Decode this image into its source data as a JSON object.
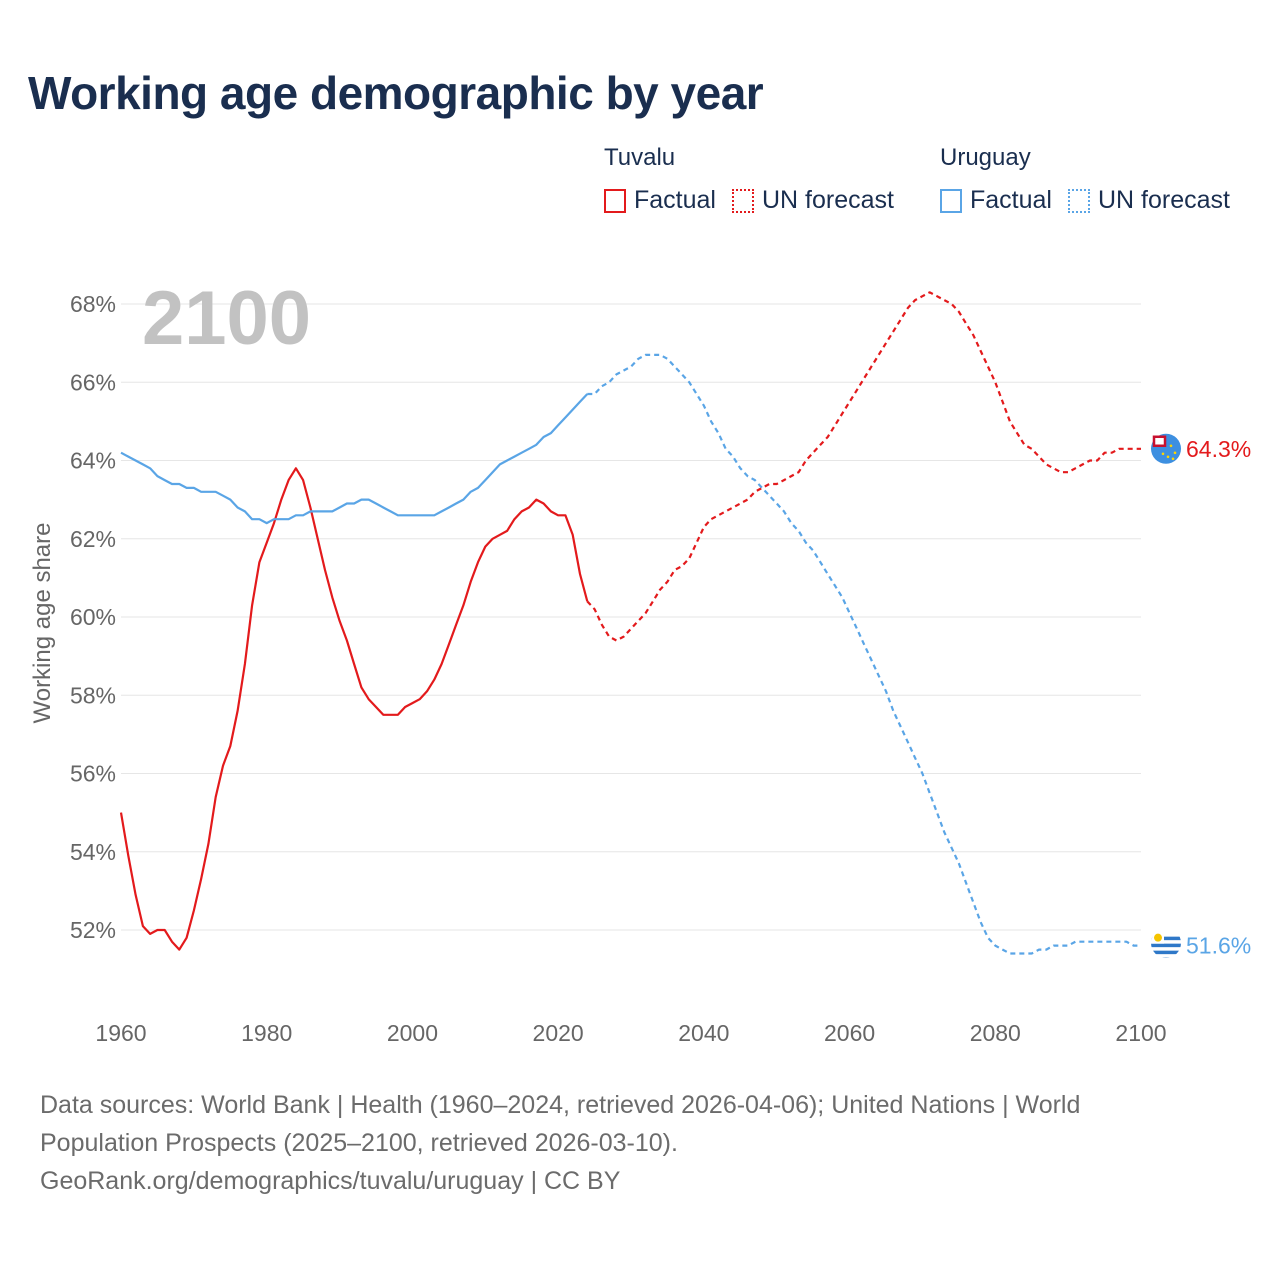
{
  "title": "Working age demographic by year",
  "legend": {
    "groups": [
      {
        "name": "Tuvalu",
        "color": "#e31a1c",
        "factual_label": "Factual",
        "forecast_label": "UN forecast"
      },
      {
        "name": "Uruguay",
        "color": "#5aa5e6",
        "factual_label": "Factual",
        "forecast_label": "UN forecast"
      }
    ]
  },
  "footer": {
    "line1": "Data sources: World Bank | Health (1960–2024, retrieved 2026-04-06); United Nations | World",
    "line2": "Population Prospects (2025–2100, retrieved 2026-03-10).",
    "line3": "GeoRank.org/demographics/tuvalu/uruguay | CC BY"
  },
  "chart_data": {
    "type": "line",
    "title": "Working age demographic by year",
    "year_watermark": "2100",
    "xlabel": "",
    "ylabel": "Working age share",
    "xlim": [
      1960,
      2100
    ],
    "ylim": [
      50.5,
      69
    ],
    "x_ticks": [
      1960,
      1980,
      2000,
      2020,
      2040,
      2060,
      2080,
      2100
    ],
    "y_ticks": [
      52,
      54,
      56,
      58,
      60,
      62,
      64,
      66,
      68
    ],
    "y_tick_suffix": "%",
    "grid": true,
    "factual_end_year": 2024,
    "series": [
      {
        "name": "Tuvalu",
        "color": "#e31a1c",
        "end_label": "64.3%",
        "flag_icon": "tuvalu-flag-icon",
        "points": [
          [
            1960,
            55.0
          ],
          [
            1961,
            53.9
          ],
          [
            1962,
            52.9
          ],
          [
            1963,
            52.1
          ],
          [
            1964,
            51.9
          ],
          [
            1965,
            52.0
          ],
          [
            1966,
            52.0
          ],
          [
            1967,
            51.7
          ],
          [
            1968,
            51.5
          ],
          [
            1969,
            51.8
          ],
          [
            1970,
            52.5
          ],
          [
            1971,
            53.3
          ],
          [
            1972,
            54.2
          ],
          [
            1973,
            55.4
          ],
          [
            1974,
            56.2
          ],
          [
            1975,
            56.7
          ],
          [
            1976,
            57.6
          ],
          [
            1977,
            58.8
          ],
          [
            1978,
            60.3
          ],
          [
            1979,
            61.4
          ],
          [
            1980,
            61.9
          ],
          [
            1981,
            62.4
          ],
          [
            1982,
            63.0
          ],
          [
            1983,
            63.5
          ],
          [
            1984,
            63.8
          ],
          [
            1985,
            63.5
          ],
          [
            1986,
            62.8
          ],
          [
            1987,
            62.0
          ],
          [
            1988,
            61.2
          ],
          [
            1989,
            60.5
          ],
          [
            1990,
            59.9
          ],
          [
            1991,
            59.4
          ],
          [
            1992,
            58.8
          ],
          [
            1993,
            58.2
          ],
          [
            1994,
            57.9
          ],
          [
            1995,
            57.7
          ],
          [
            1996,
            57.5
          ],
          [
            1997,
            57.5
          ],
          [
            1998,
            57.5
          ],
          [
            1999,
            57.7
          ],
          [
            2000,
            57.8
          ],
          [
            2001,
            57.9
          ],
          [
            2002,
            58.1
          ],
          [
            2003,
            58.4
          ],
          [
            2004,
            58.8
          ],
          [
            2005,
            59.3
          ],
          [
            2006,
            59.8
          ],
          [
            2007,
            60.3
          ],
          [
            2008,
            60.9
          ],
          [
            2009,
            61.4
          ],
          [
            2010,
            61.8
          ],
          [
            2011,
            62.0
          ],
          [
            2012,
            62.1
          ],
          [
            2013,
            62.2
          ],
          [
            2014,
            62.5
          ],
          [
            2015,
            62.7
          ],
          [
            2016,
            62.8
          ],
          [
            2017,
            63.0
          ],
          [
            2018,
            62.9
          ],
          [
            2019,
            62.7
          ],
          [
            2020,
            62.6
          ],
          [
            2021,
            62.6
          ],
          [
            2022,
            62.1
          ],
          [
            2023,
            61.1
          ],
          [
            2024,
            60.4
          ],
          [
            2025,
            60.2
          ],
          [
            2026,
            59.8
          ],
          [
            2027,
            59.5
          ],
          [
            2028,
            59.4
          ],
          [
            2029,
            59.5
          ],
          [
            2030,
            59.7
          ],
          [
            2031,
            59.9
          ],
          [
            2032,
            60.1
          ],
          [
            2033,
            60.4
          ],
          [
            2034,
            60.7
          ],
          [
            2035,
            60.9
          ],
          [
            2036,
            61.2
          ],
          [
            2037,
            61.3
          ],
          [
            2038,
            61.5
          ],
          [
            2039,
            61.9
          ],
          [
            2040,
            62.3
          ],
          [
            2041,
            62.5
          ],
          [
            2042,
            62.6
          ],
          [
            2043,
            62.7
          ],
          [
            2044,
            62.8
          ],
          [
            2045,
            62.9
          ],
          [
            2046,
            63.0
          ],
          [
            2047,
            63.2
          ],
          [
            2048,
            63.3
          ],
          [
            2049,
            63.4
          ],
          [
            2050,
            63.4
          ],
          [
            2051,
            63.5
          ],
          [
            2052,
            63.6
          ],
          [
            2053,
            63.7
          ],
          [
            2054,
            64.0
          ],
          [
            2055,
            64.2
          ],
          [
            2056,
            64.4
          ],
          [
            2057,
            64.6
          ],
          [
            2058,
            64.9
          ],
          [
            2059,
            65.2
          ],
          [
            2060,
            65.5
          ],
          [
            2061,
            65.8
          ],
          [
            2062,
            66.1
          ],
          [
            2063,
            66.4
          ],
          [
            2064,
            66.7
          ],
          [
            2065,
            67.0
          ],
          [
            2066,
            67.3
          ],
          [
            2067,
            67.6
          ],
          [
            2068,
            67.9
          ],
          [
            2069,
            68.1
          ],
          [
            2070,
            68.2
          ],
          [
            2071,
            68.3
          ],
          [
            2072,
            68.2
          ],
          [
            2073,
            68.1
          ],
          [
            2074,
            68.0
          ],
          [
            2075,
            67.8
          ],
          [
            2076,
            67.5
          ],
          [
            2077,
            67.2
          ],
          [
            2078,
            66.8
          ],
          [
            2079,
            66.4
          ],
          [
            2080,
            66.0
          ],
          [
            2081,
            65.5
          ],
          [
            2082,
            65.0
          ],
          [
            2083,
            64.7
          ],
          [
            2084,
            64.4
          ],
          [
            2085,
            64.3
          ],
          [
            2086,
            64.1
          ],
          [
            2087,
            63.9
          ],
          [
            2088,
            63.8
          ],
          [
            2089,
            63.7
          ],
          [
            2090,
            63.7
          ],
          [
            2091,
            63.8
          ],
          [
            2092,
            63.9
          ],
          [
            2093,
            64.0
          ],
          [
            2094,
            64.0
          ],
          [
            2095,
            64.2
          ],
          [
            2096,
            64.2
          ],
          [
            2097,
            64.3
          ],
          [
            2098,
            64.3
          ],
          [
            2099,
            64.3
          ],
          [
            2100,
            64.3
          ]
        ]
      },
      {
        "name": "Uruguay",
        "color": "#5aa5e6",
        "end_label": "51.6%",
        "flag_icon": "uruguay-flag-icon",
        "points": [
          [
            1960,
            64.2
          ],
          [
            1961,
            64.1
          ],
          [
            1962,
            64.0
          ],
          [
            1963,
            63.9
          ],
          [
            1964,
            63.8
          ],
          [
            1965,
            63.6
          ],
          [
            1966,
            63.5
          ],
          [
            1967,
            63.4
          ],
          [
            1968,
            63.4
          ],
          [
            1969,
            63.3
          ],
          [
            1970,
            63.3
          ],
          [
            1971,
            63.2
          ],
          [
            1972,
            63.2
          ],
          [
            1973,
            63.2
          ],
          [
            1974,
            63.1
          ],
          [
            1975,
            63.0
          ],
          [
            1976,
            62.8
          ],
          [
            1977,
            62.7
          ],
          [
            1978,
            62.5
          ],
          [
            1979,
            62.5
          ],
          [
            1980,
            62.4
          ],
          [
            1981,
            62.5
          ],
          [
            1982,
            62.5
          ],
          [
            1983,
            62.5
          ],
          [
            1984,
            62.6
          ],
          [
            1985,
            62.6
          ],
          [
            1986,
            62.7
          ],
          [
            1987,
            62.7
          ],
          [
            1988,
            62.7
          ],
          [
            1989,
            62.7
          ],
          [
            1990,
            62.8
          ],
          [
            1991,
            62.9
          ],
          [
            1992,
            62.9
          ],
          [
            1993,
            63.0
          ],
          [
            1994,
            63.0
          ],
          [
            1995,
            62.9
          ],
          [
            1996,
            62.8
          ],
          [
            1997,
            62.7
          ],
          [
            1998,
            62.6
          ],
          [
            1999,
            62.6
          ],
          [
            2000,
            62.6
          ],
          [
            2001,
            62.6
          ],
          [
            2002,
            62.6
          ],
          [
            2003,
            62.6
          ],
          [
            2004,
            62.7
          ],
          [
            2005,
            62.8
          ],
          [
            2006,
            62.9
          ],
          [
            2007,
            63.0
          ],
          [
            2008,
            63.2
          ],
          [
            2009,
            63.3
          ],
          [
            2010,
            63.5
          ],
          [
            2011,
            63.7
          ],
          [
            2012,
            63.9
          ],
          [
            2013,
            64.0
          ],
          [
            2014,
            64.1
          ],
          [
            2015,
            64.2
          ],
          [
            2016,
            64.3
          ],
          [
            2017,
            64.4
          ],
          [
            2018,
            64.6
          ],
          [
            2019,
            64.7
          ],
          [
            2020,
            64.9
          ],
          [
            2021,
            65.1
          ],
          [
            2022,
            65.3
          ],
          [
            2023,
            65.5
          ],
          [
            2024,
            65.7
          ],
          [
            2025,
            65.7
          ],
          [
            2026,
            65.9
          ],
          [
            2027,
            66.0
          ],
          [
            2028,
            66.2
          ],
          [
            2029,
            66.3
          ],
          [
            2030,
            66.4
          ],
          [
            2031,
            66.6
          ],
          [
            2032,
            66.7
          ],
          [
            2033,
            66.7
          ],
          [
            2034,
            66.7
          ],
          [
            2035,
            66.6
          ],
          [
            2036,
            66.4
          ],
          [
            2037,
            66.2
          ],
          [
            2038,
            66.0
          ],
          [
            2039,
            65.7
          ],
          [
            2040,
            65.4
          ],
          [
            2041,
            65.0
          ],
          [
            2042,
            64.7
          ],
          [
            2043,
            64.3
          ],
          [
            2044,
            64.1
          ],
          [
            2045,
            63.8
          ],
          [
            2046,
            63.6
          ],
          [
            2047,
            63.5
          ],
          [
            2048,
            63.3
          ],
          [
            2049,
            63.1
          ],
          [
            2050,
            62.9
          ],
          [
            2051,
            62.7
          ],
          [
            2052,
            62.4
          ],
          [
            2053,
            62.2
          ],
          [
            2054,
            61.9
          ],
          [
            2055,
            61.7
          ],
          [
            2056,
            61.4
          ],
          [
            2057,
            61.1
          ],
          [
            2058,
            60.8
          ],
          [
            2059,
            60.5
          ],
          [
            2060,
            60.1
          ],
          [
            2061,
            59.7
          ],
          [
            2062,
            59.3
          ],
          [
            2063,
            58.9
          ],
          [
            2064,
            58.5
          ],
          [
            2065,
            58.1
          ],
          [
            2066,
            57.6
          ],
          [
            2067,
            57.2
          ],
          [
            2068,
            56.8
          ],
          [
            2069,
            56.4
          ],
          [
            2070,
            56.0
          ],
          [
            2071,
            55.5
          ],
          [
            2072,
            55.0
          ],
          [
            2073,
            54.5
          ],
          [
            2074,
            54.1
          ],
          [
            2075,
            53.7
          ],
          [
            2076,
            53.2
          ],
          [
            2077,
            52.7
          ],
          [
            2078,
            52.2
          ],
          [
            2079,
            51.8
          ],
          [
            2080,
            51.6
          ],
          [
            2081,
            51.5
          ],
          [
            2082,
            51.4
          ],
          [
            2083,
            51.4
          ],
          [
            2084,
            51.4
          ],
          [
            2085,
            51.4
          ],
          [
            2086,
            51.5
          ],
          [
            2087,
            51.5
          ],
          [
            2088,
            51.6
          ],
          [
            2089,
            51.6
          ],
          [
            2090,
            51.6
          ],
          [
            2091,
            51.7
          ],
          [
            2092,
            51.7
          ],
          [
            2093,
            51.7
          ],
          [
            2094,
            51.7
          ],
          [
            2095,
            51.7
          ],
          [
            2096,
            51.7
          ],
          [
            2097,
            51.7
          ],
          [
            2098,
            51.7
          ],
          [
            2099,
            51.6
          ],
          [
            2100,
            51.6
          ]
        ]
      }
    ]
  }
}
